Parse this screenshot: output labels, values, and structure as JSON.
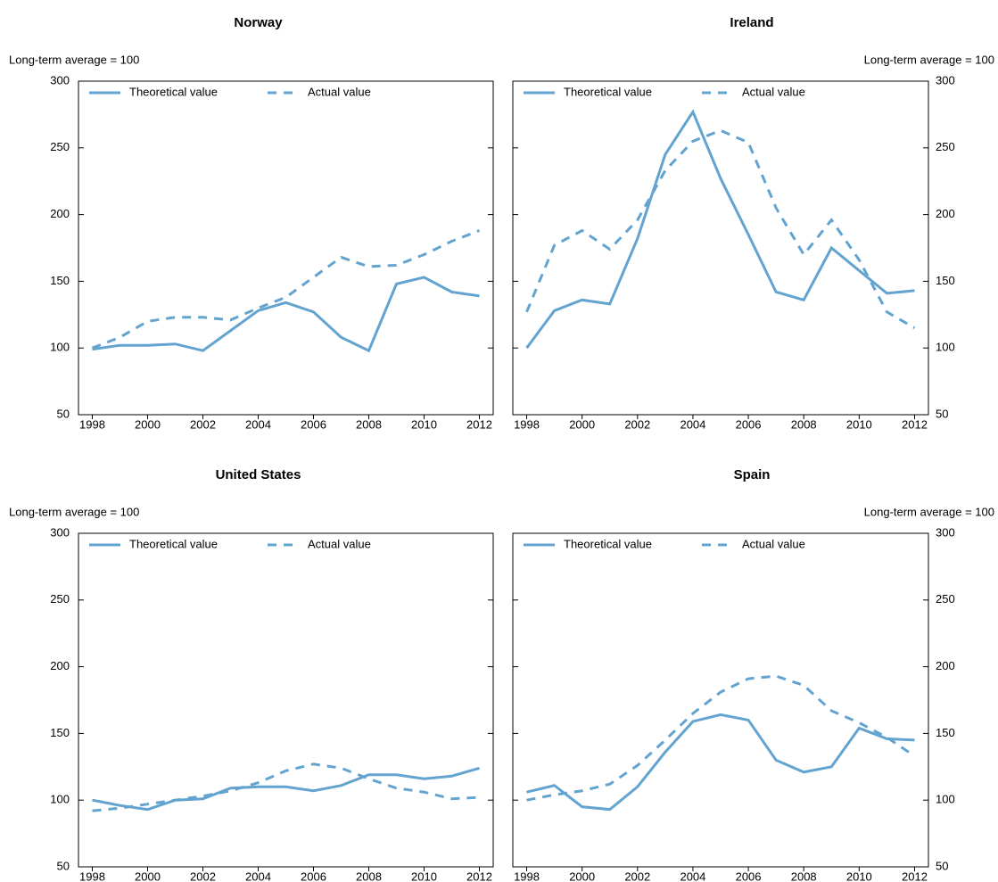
{
  "chart_data": [
    {
      "type": "line",
      "title": "Norway",
      "y_label": "Long-term average = 100",
      "yaxis_side": "left",
      "legend": "upper left",
      "x": [
        1998,
        1999,
        2000,
        2001,
        2002,
        2003,
        2004,
        2005,
        2006,
        2007,
        2008,
        2009,
        2010,
        2011,
        2012
      ],
      "series": [
        {
          "name": "Theoretical value",
          "color": "#62a3d0",
          "linestyle": "solid",
          "values": [
            99,
            102,
            102,
            103,
            98,
            113,
            128,
            134,
            127,
            108,
            98,
            148,
            153,
            142,
            139
          ]
        },
        {
          "name": "Actual value",
          "color": "#62a3d0",
          "linestyle": "dashed",
          "values": [
            100,
            108,
            120,
            123,
            123,
            121,
            130,
            138,
            153,
            168,
            161,
            162,
            170,
            180,
            188
          ]
        }
      ],
      "xlim": [
        1997.5,
        2012.5
      ],
      "xticks": [
        1998,
        2000,
        2002,
        2004,
        2006,
        2008,
        2010,
        2012
      ],
      "ylim": [
        50,
        300
      ],
      "yticks": [
        50,
        100,
        150,
        200,
        250,
        300
      ]
    },
    {
      "type": "line",
      "title": "Ireland",
      "y_label": "Long-term average = 100",
      "yaxis_side": "right",
      "legend": "upper left",
      "x": [
        1998,
        1999,
        2000,
        2001,
        2002,
        2003,
        2004,
        2005,
        2006,
        2007,
        2008,
        2009,
        2010,
        2011,
        2012
      ],
      "series": [
        {
          "name": "Theoretical value",
          "color": "#62a3d0",
          "linestyle": "solid",
          "values": [
            100,
            128,
            136,
            133,
            182,
            245,
            277,
            227,
            185,
            142,
            136,
            175,
            158,
            141,
            143
          ]
        },
        {
          "name": "Actual value",
          "color": "#62a3d0",
          "linestyle": "dashed",
          "values": [
            127,
            177,
            188,
            174,
            196,
            233,
            255,
            263,
            254,
            205,
            170,
            196,
            166,
            127,
            115
          ]
        }
      ],
      "xlim": [
        1997.5,
        2012.5
      ],
      "xticks": [
        1998,
        2000,
        2002,
        2004,
        2006,
        2008,
        2010,
        2012
      ],
      "ylim": [
        50,
        300
      ],
      "yticks": [
        50,
        100,
        150,
        200,
        250,
        300
      ]
    },
    {
      "type": "line",
      "title": "United States",
      "y_label": "Long-term average = 100",
      "yaxis_side": "left",
      "legend": "upper left",
      "x": [
        1998,
        1999,
        2000,
        2001,
        2002,
        2003,
        2004,
        2005,
        2006,
        2007,
        2008,
        2009,
        2010,
        2011,
        2012
      ],
      "series": [
        {
          "name": "Theoretical value",
          "color": "#62a3d0",
          "linestyle": "solid",
          "values": [
            100,
            96,
            93,
            100,
            101,
            109,
            110,
            110,
            107,
            111,
            119,
            119,
            116,
            118,
            124
          ]
        },
        {
          "name": "Actual value",
          "color": "#62a3d0",
          "linestyle": "dashed",
          "values": [
            92,
            94,
            97,
            100,
            103,
            107,
            113,
            122,
            127,
            124,
            116,
            109,
            106,
            101,
            102
          ]
        }
      ],
      "xlim": [
        1997.5,
        2012.5
      ],
      "xticks": [
        1998,
        2000,
        2002,
        2004,
        2006,
        2008,
        2010,
        2012
      ],
      "ylim": [
        50,
        300
      ],
      "yticks": [
        50,
        100,
        150,
        200,
        250,
        300
      ]
    },
    {
      "type": "line",
      "title": "Spain",
      "y_label": "Long-term average = 100",
      "yaxis_side": "right",
      "legend": "upper left",
      "x": [
        1998,
        1999,
        2000,
        2001,
        2002,
        2003,
        2004,
        2005,
        2006,
        2007,
        2008,
        2009,
        2010,
        2011,
        2012
      ],
      "series": [
        {
          "name": "Theoretical value",
          "color": "#62a3d0",
          "linestyle": "solid",
          "values": [
            106,
            111,
            95,
            93,
            110,
            136,
            159,
            164,
            160,
            130,
            121,
            125,
            154,
            146,
            145
          ]
        },
        {
          "name": "Actual value",
          "color": "#62a3d0",
          "linestyle": "dashed",
          "values": [
            100,
            104,
            107,
            112,
            126,
            145,
            165,
            181,
            191,
            193,
            186,
            167,
            158,
            147,
            133
          ]
        }
      ],
      "xlim": [
        1997.5,
        2012.5
      ],
      "xticks": [
        1998,
        2000,
        2002,
        2004,
        2006,
        2008,
        2010,
        2012
      ],
      "ylim": [
        50,
        300
      ],
      "yticks": [
        50,
        100,
        150,
        200,
        250,
        300
      ]
    }
  ]
}
